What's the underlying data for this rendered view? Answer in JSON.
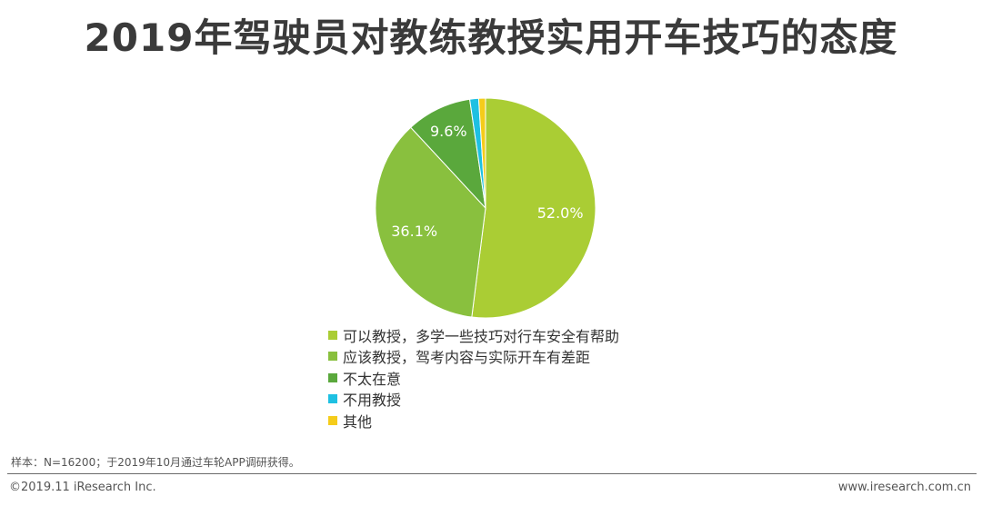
{
  "page": {
    "title": "2019年驾驶员对教练教授实用开车技巧的态度",
    "source_note": "样本：N=16200；于2019年10月通过车轮APP调研获得。",
    "copyright": "©2019.11 iResearch Inc.",
    "website": "www.iresearch.com.cn"
  },
  "chart_data": {
    "type": "pie",
    "title": "2019年驾驶员对教练教授实用开车技巧的态度",
    "start_direction": "12 o'clock, clockwise",
    "legend_position": "bottom",
    "slices": [
      {
        "label": "可以教授，多学一些技巧对行车安全有帮助",
        "value": 52.0,
        "value_label": "52.0%",
        "color": "#aacd34"
      },
      {
        "label": "应该教授，驾考内容与实际开车有差距",
        "value": 36.1,
        "value_label": "36.1%",
        "color": "#89c03e"
      },
      {
        "label": "不太在意",
        "value": 9.6,
        "value_label": "9.6%",
        "color": "#5aa83c"
      },
      {
        "label": "不用教授",
        "value": 1.3,
        "value_label": "",
        "color": "#1ec0e2"
      },
      {
        "label": "其他",
        "value": 1.0,
        "value_label": "",
        "color": "#f5cc1a"
      }
    ]
  }
}
